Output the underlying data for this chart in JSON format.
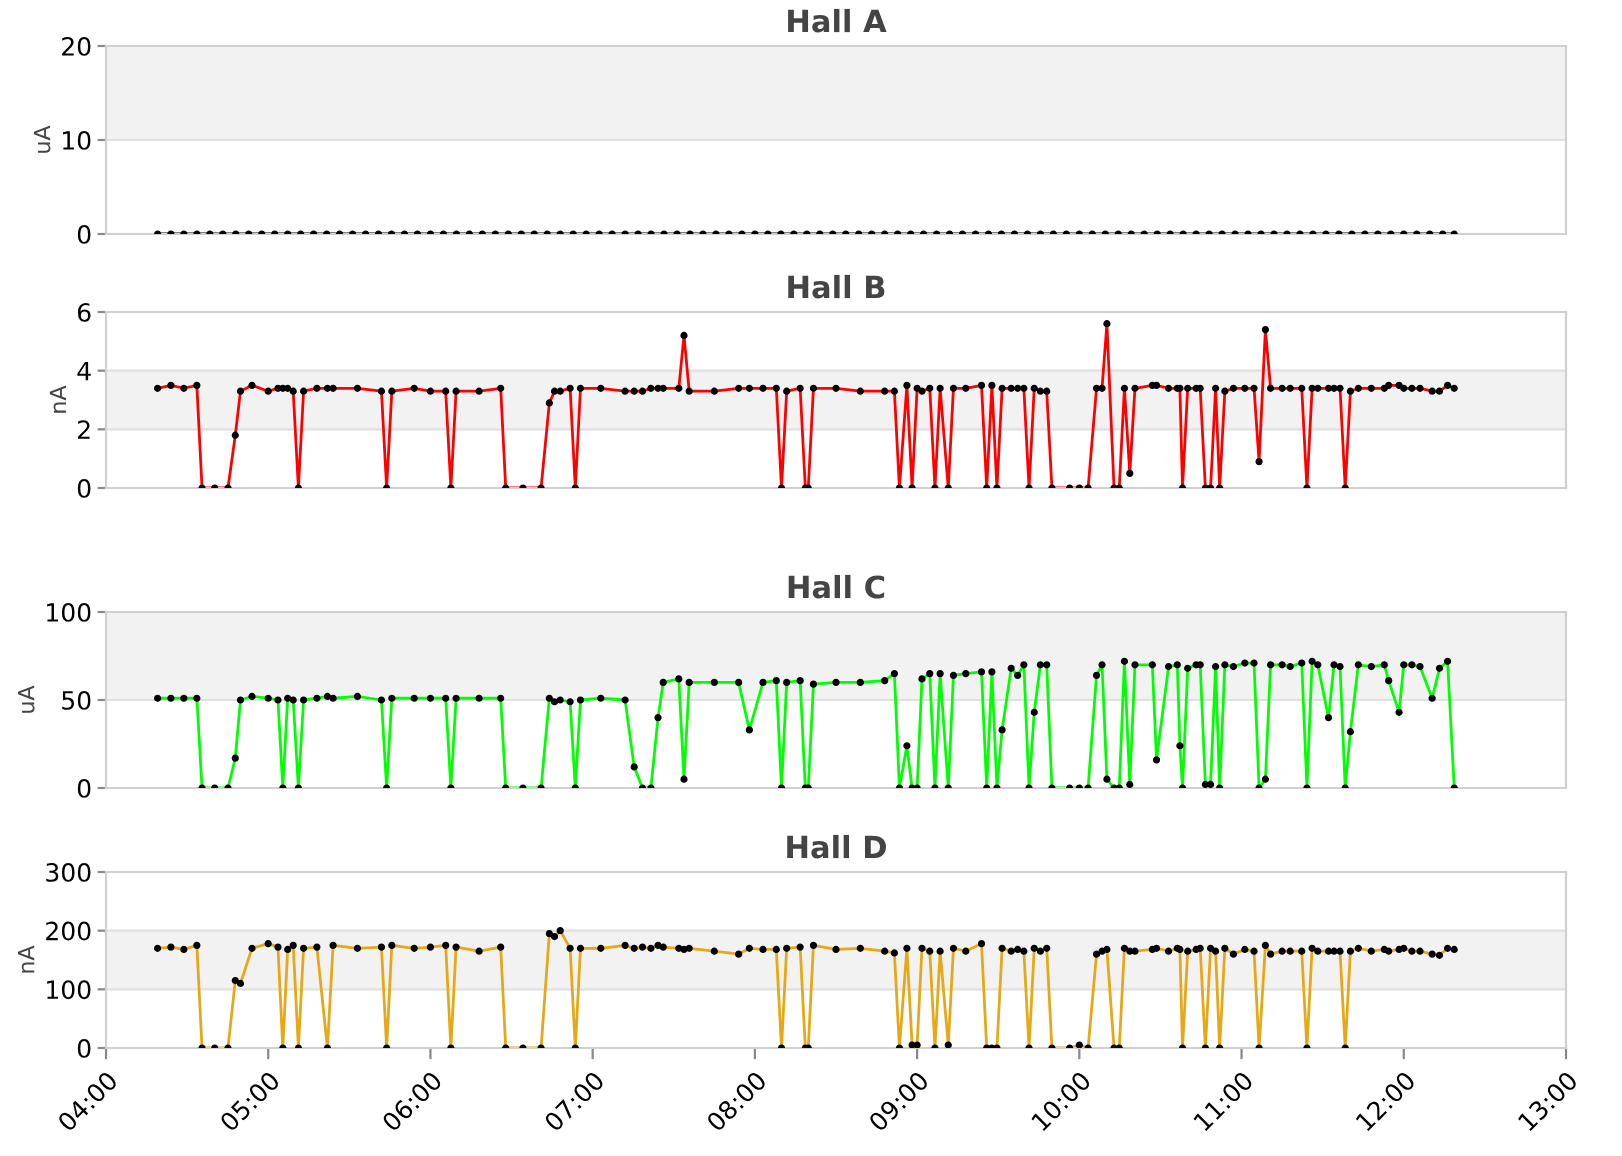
{
  "chart_data": [
    {
      "type": "line",
      "title": "Hall A",
      "ylabel": "uA",
      "marker": "circle",
      "grid": "y",
      "tick_labels": "y",
      "xlim": [
        4,
        13
      ],
      "ylim": [
        0,
        20
      ],
      "yticks": [
        0,
        10,
        20
      ],
      "bands": [
        {
          "axis": "y",
          "from": 10,
          "to": 20,
          "color": "#f2f2f2"
        }
      ],
      "x": [
        4.318,
        4.4,
        4.48,
        4.56,
        4.64,
        4.72,
        4.8,
        4.88,
        4.96,
        5.04,
        5.12,
        5.2,
        5.28,
        5.36,
        5.44,
        5.52,
        5.6,
        5.68,
        5.76,
        5.84,
        5.92,
        6.0,
        6.08,
        6.16,
        6.24,
        6.32,
        6.4,
        6.48,
        6.56,
        6.64,
        6.72,
        6.8,
        6.88,
        6.96,
        7.04,
        7.12,
        7.2,
        7.28,
        7.36,
        7.44,
        7.52,
        7.6,
        7.68,
        7.76,
        7.84,
        7.92,
        8.0,
        8.08,
        8.16,
        8.24,
        8.32,
        8.4,
        8.48,
        8.56,
        8.64,
        8.72,
        8.8,
        8.88,
        8.96,
        9.04,
        9.12,
        9.2,
        9.28,
        9.36,
        9.44,
        9.52,
        9.6,
        9.68,
        9.76,
        9.84,
        9.92,
        10.0,
        10.08,
        10.16,
        10.24,
        10.32,
        10.4,
        10.48,
        10.56,
        10.64,
        10.72,
        10.8,
        10.88,
        10.96,
        11.04,
        11.12,
        11.2,
        11.28,
        11.36,
        11.44,
        11.52,
        11.6,
        11.68,
        11.76,
        11.84,
        11.92,
        12.0,
        12.08,
        12.16,
        12.24,
        12.311
      ],
      "series": [
        {
          "color": "#000000",
          "values": [
            0,
            0,
            0,
            0,
            0,
            0,
            0,
            0,
            0,
            0,
            0,
            0,
            0,
            0,
            0,
            0,
            0,
            0,
            0,
            0,
            0,
            0,
            0,
            0,
            0,
            0,
            0,
            0,
            0,
            0,
            0,
            0,
            0,
            0,
            0,
            0,
            0,
            0,
            0,
            0,
            0,
            0,
            0,
            0,
            0,
            0,
            0,
            0,
            0,
            0,
            0,
            0,
            0,
            0,
            0,
            0,
            0,
            0,
            0,
            0,
            0,
            0,
            0,
            0,
            0,
            0,
            0,
            0,
            0,
            0,
            0,
            0,
            0,
            0,
            0,
            0,
            0,
            0,
            0,
            0,
            0,
            0,
            0,
            0,
            0,
            0,
            0,
            0,
            0,
            0,
            0,
            0,
            0,
            0,
            0,
            0,
            0,
            0,
            0,
            0,
            0
          ]
        }
      ]
    },
    {
      "type": "line",
      "title": "Hall B",
      "ylabel": "nA",
      "marker": "circle",
      "grid": "y",
      "tick_labels": "y",
      "xlim": [
        4,
        13
      ],
      "ylim": [
        0,
        6
      ],
      "yticks": [
        0,
        2,
        4,
        6
      ],
      "bands": [
        {
          "axis": "y",
          "from": 2,
          "to": 4,
          "color": "#f2f2f2"
        }
      ],
      "x": [
        4.318,
        4.4,
        4.48,
        4.56,
        4.592,
        4.67,
        4.752,
        4.797,
        4.829,
        4.9,
        5.0,
        5.06,
        5.09,
        5.12,
        5.154,
        5.186,
        5.218,
        5.3,
        5.365,
        5.4,
        5.55,
        5.698,
        5.73,
        5.762,
        5.9,
        6.0,
        6.094,
        6.126,
        6.158,
        6.3,
        6.433,
        6.464,
        6.57,
        6.682,
        6.733,
        6.765,
        6.8,
        6.861,
        6.893,
        6.925,
        7.05,
        7.2,
        7.256,
        7.307,
        7.359,
        7.403,
        7.435,
        7.531,
        7.563,
        7.595,
        7.75,
        7.9,
        7.966,
        8.05,
        8.132,
        8.164,
        8.196,
        8.279,
        8.311,
        8.329,
        8.361,
        8.5,
        8.65,
        8.8,
        8.86,
        8.891,
        8.937,
        8.969,
        9.0,
        9.03,
        9.078,
        9.11,
        9.142,
        9.192,
        9.224,
        9.3,
        9.397,
        9.429,
        9.461,
        9.492,
        9.524,
        9.58,
        9.62,
        9.658,
        9.69,
        9.722,
        9.76,
        9.799,
        9.831,
        9.94,
        10.0,
        10.054,
        10.106,
        10.14,
        10.17,
        10.214,
        10.246,
        10.278,
        10.311,
        10.343,
        10.45,
        10.476,
        10.55,
        10.604,
        10.62,
        10.636,
        10.668,
        10.72,
        10.745,
        10.777,
        10.809,
        10.84,
        10.865,
        10.897,
        10.95,
        11.02,
        11.077,
        11.108,
        11.147,
        11.179,
        11.25,
        11.3,
        11.371,
        11.403,
        11.435,
        11.47,
        11.536,
        11.57,
        11.607,
        11.639,
        11.671,
        11.72,
        11.8,
        11.88,
        11.907,
        11.971,
        12.0,
        12.05,
        12.1,
        12.175,
        12.22,
        12.27,
        12.311
      ],
      "series": [
        {
          "color": "#ff0000",
          "values": [
            3.4,
            3.5,
            3.4,
            3.5,
            0,
            0,
            0,
            1.8,
            3.3,
            3.5,
            3.3,
            3.4,
            3.4,
            3.4,
            3.3,
            0,
            3.3,
            3.4,
            3.4,
            3.4,
            3.4,
            3.3,
            0,
            3.3,
            3.4,
            3.3,
            3.3,
            0,
            3.3,
            3.3,
            3.4,
            0,
            0,
            0,
            2.9,
            3.3,
            3.3,
            3.4,
            0,
            3.4,
            3.4,
            3.3,
            3.3,
            3.3,
            3.4,
            3.4,
            3.4,
            3.4,
            5.2,
            3.3,
            3.3,
            3.4,
            3.4,
            3.4,
            3.4,
            0,
            3.3,
            3.4,
            0,
            0,
            3.4,
            3.4,
            3.3,
            3.3,
            3.3,
            0,
            3.5,
            0,
            3.4,
            3.3,
            3.4,
            0,
            3.4,
            0,
            3.4,
            3.4,
            3.5,
            0,
            3.5,
            0,
            3.4,
            3.4,
            3.4,
            3.4,
            0,
            3.4,
            3.3,
            3.3,
            0,
            0,
            0,
            0,
            3.4,
            3.4,
            5.6,
            0,
            0,
            3.4,
            0.5,
            3.4,
            3.5,
            3.5,
            3.4,
            3.4,
            3.4,
            0,
            3.4,
            3.4,
            3.4,
            0,
            0,
            3.4,
            0,
            3.3,
            3.4,
            3.4,
            3.4,
            0.9,
            5.4,
            3.4,
            3.4,
            3.4,
            3.4,
            0,
            3.4,
            3.4,
            3.4,
            3.4,
            3.4,
            0,
            3.3,
            3.4,
            3.4,
            3.4,
            3.5,
            3.5,
            3.4,
            3.4,
            3.4,
            3.3,
            3.3,
            3.5,
            3.4
          ]
        }
      ]
    },
    {
      "type": "line",
      "title": "Hall C",
      "ylabel": "uA",
      "marker": "circle",
      "grid": "y",
      "tick_labels": "y",
      "xlim": [
        4,
        13
      ],
      "ylim": [
        0,
        100
      ],
      "yticks": [
        0,
        50,
        100
      ],
      "bands": [
        {
          "axis": "y",
          "from": 50,
          "to": 100,
          "color": "#f2f2f2"
        }
      ],
      "x": [
        4.318,
        4.4,
        4.48,
        4.56,
        4.592,
        4.67,
        4.752,
        4.797,
        4.829,
        4.9,
        5.0,
        5.06,
        5.09,
        5.12,
        5.154,
        5.186,
        5.218,
        5.3,
        5.365,
        5.4,
        5.55,
        5.698,
        5.73,
        5.762,
        5.9,
        6.0,
        6.094,
        6.126,
        6.158,
        6.3,
        6.433,
        6.464,
        6.57,
        6.682,
        6.733,
        6.765,
        6.8,
        6.861,
        6.893,
        6.925,
        7.05,
        7.2,
        7.256,
        7.307,
        7.359,
        7.403,
        7.435,
        7.531,
        7.563,
        7.595,
        7.75,
        7.9,
        7.966,
        8.05,
        8.132,
        8.164,
        8.196,
        8.279,
        8.311,
        8.329,
        8.361,
        8.5,
        8.65,
        8.8,
        8.86,
        8.891,
        8.937,
        8.969,
        9.0,
        9.03,
        9.078,
        9.11,
        9.142,
        9.192,
        9.224,
        9.3,
        9.397,
        9.429,
        9.461,
        9.492,
        9.524,
        9.58,
        9.62,
        9.658,
        9.69,
        9.722,
        9.76,
        9.799,
        9.831,
        9.94,
        10.0,
        10.054,
        10.106,
        10.14,
        10.17,
        10.214,
        10.246,
        10.278,
        10.311,
        10.343,
        10.45,
        10.476,
        10.55,
        10.604,
        10.62,
        10.636,
        10.668,
        10.72,
        10.745,
        10.777,
        10.809,
        10.84,
        10.865,
        10.897,
        10.95,
        11.02,
        11.077,
        11.108,
        11.147,
        11.179,
        11.25,
        11.3,
        11.371,
        11.403,
        11.435,
        11.47,
        11.536,
        11.57,
        11.607,
        11.639,
        11.671,
        11.72,
        11.8,
        11.88,
        11.907,
        11.971,
        12.0,
        12.05,
        12.1,
        12.175,
        12.22,
        12.27,
        12.311
      ],
      "series": [
        {
          "color": "#00ff00",
          "values": [
            51,
            51,
            51,
            51,
            0,
            0,
            0,
            17,
            50,
            52,
            51,
            50,
            0,
            51,
            50,
            0,
            50,
            51,
            52,
            51,
            52,
            50,
            0,
            51,
            51,
            51,
            51,
            0,
            51,
            51,
            51,
            0,
            0,
            0,
            51,
            49,
            50,
            49,
            0,
            50,
            51,
            50,
            12,
            0,
            0,
            40,
            60,
            62,
            5,
            60,
            60,
            60,
            33,
            60,
            61,
            0,
            60,
            61,
            0,
            0,
            59,
            60,
            60,
            61,
            65,
            0,
            24,
            0,
            0,
            62,
            65,
            0,
            65,
            0,
            64,
            65,
            66,
            0,
            66,
            0,
            33,
            68,
            64,
            70,
            0,
            43,
            70,
            70,
            0,
            0,
            0,
            0,
            64,
            70,
            5,
            0,
            0,
            72,
            2,
            70,
            70,
            16,
            69,
            70,
            24,
            0,
            68,
            70,
            70,
            2,
            2,
            69,
            0,
            70,
            69,
            71,
            71,
            0,
            5,
            70,
            70,
            69,
            71,
            0,
            72,
            70,
            40,
            70,
            69,
            0,
            32,
            70,
            69,
            70,
            61,
            43,
            70,
            70,
            69,
            51,
            68,
            72,
            0
          ]
        }
      ]
    },
    {
      "type": "line",
      "title": "Hall D",
      "ylabel": "nA",
      "marker": "circle",
      "grid": "y",
      "xlim": [
        4,
        13
      ],
      "xticks": [
        {
          "value": 4,
          "label": "04:00"
        },
        {
          "value": 5,
          "label": "05:00"
        },
        {
          "value": 6,
          "label": "06:00"
        },
        {
          "value": 7,
          "label": "07:00"
        },
        {
          "value": 8,
          "label": "08:00"
        },
        {
          "value": 9,
          "label": "09:00"
        },
        {
          "value": 10,
          "label": "10:00"
        },
        {
          "value": 11,
          "label": "11:00"
        },
        {
          "value": 12,
          "label": "12:00"
        },
        {
          "value": 13,
          "label": "13:00"
        }
      ],
      "ylim": [
        0,
        300
      ],
      "yticks": [
        0,
        100,
        200,
        300
      ],
      "bands": [
        {
          "axis": "y",
          "from": 100,
          "to": 200,
          "color": "#f2f2f2"
        }
      ],
      "x": [
        4.318,
        4.4,
        4.48,
        4.56,
        4.592,
        4.67,
        4.752,
        4.797,
        4.829,
        4.9,
        5.0,
        5.06,
        5.09,
        5.12,
        5.154,
        5.186,
        5.218,
        5.3,
        5.365,
        5.4,
        5.55,
        5.698,
        5.73,
        5.762,
        5.9,
        6.0,
        6.094,
        6.126,
        6.158,
        6.3,
        6.433,
        6.464,
        6.57,
        6.682,
        6.733,
        6.765,
        6.8,
        6.861,
        6.893,
        6.925,
        7.05,
        7.2,
        7.256,
        7.307,
        7.359,
        7.403,
        7.435,
        7.531,
        7.563,
        7.595,
        7.75,
        7.9,
        7.966,
        8.05,
        8.132,
        8.164,
        8.196,
        8.279,
        8.311,
        8.329,
        8.361,
        8.5,
        8.65,
        8.8,
        8.86,
        8.891,
        8.937,
        8.969,
        9.0,
        9.03,
        9.078,
        9.11,
        9.142,
        9.192,
        9.224,
        9.3,
        9.397,
        9.429,
        9.461,
        9.492,
        9.524,
        9.58,
        9.62,
        9.658,
        9.69,
        9.722,
        9.76,
        9.799,
        9.831,
        9.94,
        10.0,
        10.054,
        10.106,
        10.14,
        10.17,
        10.214,
        10.246,
        10.278,
        10.311,
        10.343,
        10.45,
        10.476,
        10.55,
        10.604,
        10.62,
        10.636,
        10.668,
        10.72,
        10.745,
        10.777,
        10.809,
        10.84,
        10.865,
        10.897,
        10.95,
        11.02,
        11.077,
        11.108,
        11.147,
        11.179,
        11.25,
        11.3,
        11.371,
        11.403,
        11.435,
        11.47,
        11.536,
        11.57,
        11.607,
        11.639,
        11.671,
        11.72,
        11.8,
        11.88,
        11.907,
        11.971,
        12.0,
        12.05,
        12.1,
        12.175,
        12.22,
        12.27,
        12.311
      ],
      "series": [
        {
          "color": "#e6a817",
          "values": [
            170,
            172,
            168,
            175,
            0,
            0,
            0,
            115,
            110,
            170,
            178,
            172,
            0,
            168,
            175,
            0,
            170,
            172,
            0,
            175,
            170,
            172,
            0,
            175,
            170,
            172,
            175,
            0,
            172,
            165,
            172,
            0,
            0,
            0,
            195,
            190,
            200,
            170,
            0,
            170,
            170,
            175,
            170,
            172,
            170,
            175,
            172,
            170,
            168,
            170,
            165,
            160,
            170,
            168,
            168,
            0,
            170,
            172,
            0,
            0,
            175,
            168,
            170,
            165,
            162,
            0,
            170,
            5,
            5,
            170,
            165,
            0,
            165,
            5,
            170,
            165,
            178,
            0,
            0,
            0,
            170,
            165,
            168,
            165,
            0,
            170,
            165,
            170,
            0,
            0,
            5,
            0,
            160,
            165,
            168,
            0,
            0,
            170,
            165,
            165,
            168,
            170,
            165,
            170,
            168,
            0,
            165,
            168,
            170,
            0,
            170,
            165,
            0,
            170,
            160,
            168,
            165,
            0,
            175,
            160,
            165,
            165,
            165,
            0,
            170,
            165,
            165,
            165,
            165,
            0,
            165,
            170,
            165,
            168,
            165,
            168,
            170,
            165,
            165,
            160,
            158,
            170,
            168
          ]
        }
      ]
    }
  ]
}
